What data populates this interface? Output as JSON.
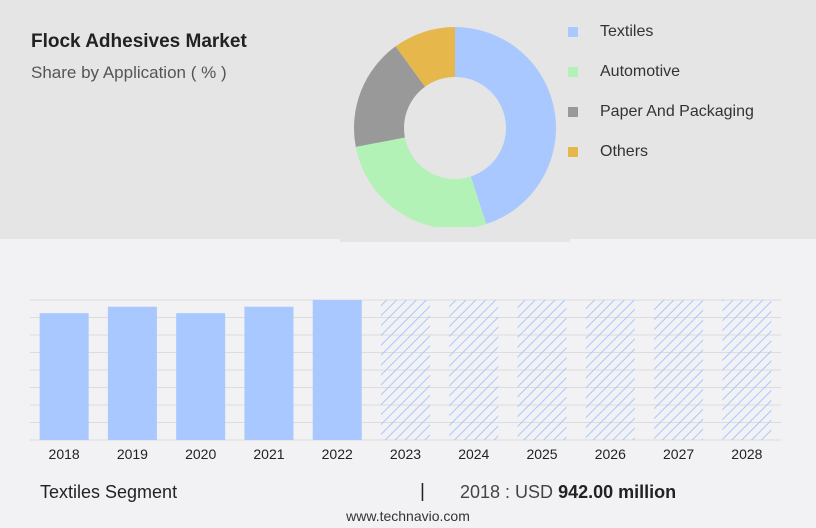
{
  "header": {
    "title": "Flock Adhesives Market",
    "subtitle": "Share by Application ( % )"
  },
  "chart_data": [
    {
      "type": "pie",
      "variant": "donut",
      "title": "Flock Adhesives Market",
      "subtitle": "Share by Application ( % )",
      "legend_position": "right",
      "slices": [
        {
          "label": "Textiles",
          "value": 45,
          "color": "#a8c8ff"
        },
        {
          "label": "Automotive",
          "value": 27,
          "color": "#b3f2b7"
        },
        {
          "label": "Paper And Packaging",
          "value": 18,
          "color": "#999999"
        },
        {
          "label": "Others",
          "value": 10,
          "color": "#e6b84c"
        }
      ]
    },
    {
      "type": "bar",
      "title": "Textiles Segment",
      "categories": [
        "2018",
        "2019",
        "2020",
        "2021",
        "2022",
        "2023",
        "2024",
        "2025",
        "2026",
        "2027",
        "2028"
      ],
      "values": [
        942,
        990,
        942,
        990,
        1040,
        1040,
        1040,
        1040,
        1040,
        1040,
        1040
      ],
      "forecast_from": "2023",
      "ylim": [
        0,
        1040
      ],
      "grid": true,
      "colors": {
        "actual": "#a8c8ff",
        "forecast_hatch": "#a8c8ff"
      }
    }
  ],
  "footer": {
    "segment_label": "Textiles Segment",
    "divider": "|",
    "year_prefix": "2018 : USD",
    "value_text": "942.00 million"
  },
  "source": "www.technavio.com"
}
